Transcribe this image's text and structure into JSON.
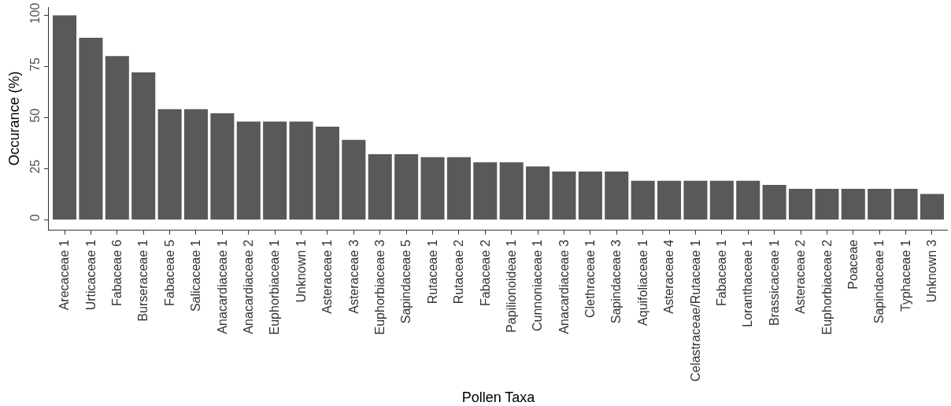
{
  "chart_data": {
    "type": "bar",
    "xlabel": "Pollen Taxa",
    "ylabel": "Occurance (%)",
    "categories": [
      "Arecaceae 1",
      "Urticaceae 1",
      "Fabaceae 6",
      "Burseraceae 1",
      "Fabaceae 5",
      "Salicaceae 1",
      "Anacardiaceae 1",
      "Anacardiaceae 2",
      "Euphorbiaceae 1",
      "Unknown 1",
      "Asteraceae 1",
      "Asteraceae 3",
      "Euphorbiaceae 3",
      "Sapindaceae 5",
      "Rutaceae 1",
      "Rutaceae 2",
      "Fabaceae 2",
      "Papilionoideae 1",
      "Cunnoniaceae 1",
      "Anacardiaceae 3",
      "Clethraceae 1",
      "Sapindaceae 3",
      "Aquifoliaceae 1",
      "Asteraceae 4",
      "Celastraceae/Rutaceae 1",
      "Fabaceae 1",
      "Loranthaceae 1",
      "Brassicaceae 1",
      "Asteraceae 2",
      "Euphorbiaceae 2",
      "Poaceae",
      "Sapindaceae 1",
      "Typhaceae 1",
      "Unknown 3"
    ],
    "values": [
      100,
      89,
      80,
      72,
      54,
      54,
      52,
      48,
      48,
      48,
      45.5,
      39,
      32,
      32,
      30.5,
      30.5,
      28,
      28,
      26,
      23.5,
      23.5,
      23.5,
      19,
      19,
      19,
      19,
      19,
      17,
      15,
      15,
      15,
      15,
      15,
      12.5
    ],
    "color": "#595959",
    "ylim": [
      -5,
      104
    ],
    "yticks": [
      0,
      25,
      50,
      75,
      100
    ],
    "grid": false,
    "legend": false
  }
}
